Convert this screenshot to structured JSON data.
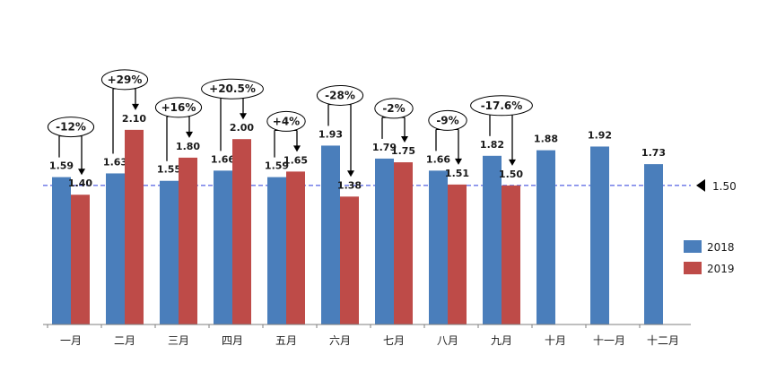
{
  "chart_data": {
    "type": "bar",
    "categories": [
      "一月",
      "二月",
      "三月",
      "四月",
      "五月",
      "六月",
      "七月",
      "八月",
      "九月",
      "十月",
      "十一月",
      "十二月"
    ],
    "series": [
      {
        "name": "2018",
        "color": "#4a7ebb",
        "values": [
          1.59,
          1.63,
          1.55,
          1.66,
          1.59,
          1.93,
          1.79,
          1.66,
          1.82,
          1.88,
          1.92,
          1.73
        ],
        "labels": [
          "1.59",
          "1.63",
          "1.55",
          "1.66",
          "1.59",
          "1.93",
          "1.79",
          "1.66",
          "1.82",
          "1.88",
          "1.92",
          "1.73"
        ]
      },
      {
        "name": "2019",
        "color": "#be4b48",
        "values": [
          1.4,
          2.1,
          1.8,
          2.0,
          1.65,
          1.38,
          1.75,
          1.51,
          1.5,
          null,
          null,
          null
        ],
        "labels": [
          "1.40",
          "2.10",
          "1.80",
          "2.00",
          "1.65",
          "1.38",
          "1.75",
          "1.51",
          "1.50",
          "",
          "",
          ""
        ]
      }
    ],
    "ylim": [
      0,
      2.5
    ],
    "reference_line": {
      "value": 1.5,
      "label": "1.50",
      "color": "#2b3bdc"
    },
    "annotations": [
      "-12%",
      "+29%",
      "+16%",
      "+20.5%",
      "+4%",
      "-28%",
      "-2%",
      "-9%",
      "-17.6%",
      "",
      "",
      ""
    ],
    "legend": {
      "position": "right",
      "items": [
        "2018",
        "2019"
      ]
    },
    "grid": false
  }
}
